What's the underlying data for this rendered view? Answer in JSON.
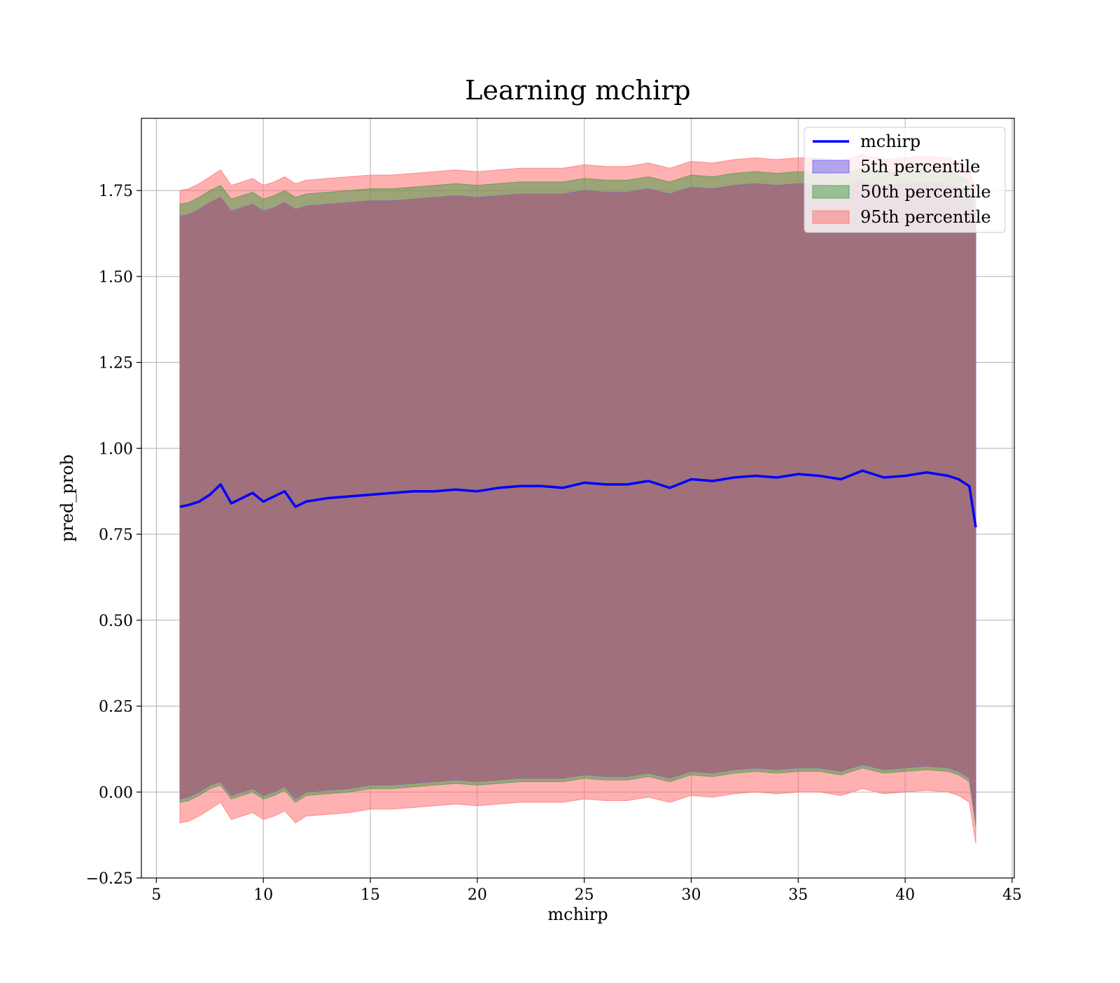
{
  "chart_data": {
    "type": "area",
    "title": "Learning mchirp",
    "xlabel": "mchirp",
    "ylabel": "pred_prob",
    "xlim": [
      4.3,
      45.1
    ],
    "ylim": [
      -0.25,
      1.96
    ],
    "xticks": [
      5,
      10,
      15,
      20,
      25,
      30,
      35,
      40,
      45
    ],
    "yticks": [
      -0.25,
      0.0,
      0.25,
      0.5,
      0.75,
      1.0,
      1.25,
      1.5,
      1.75
    ],
    "xtick_labels": [
      "5",
      "10",
      "15",
      "20",
      "25",
      "30",
      "35",
      "40",
      "45"
    ],
    "ytick_labels": [
      "−0.25",
      "0.00",
      "0.25",
      "0.50",
      "0.75",
      "1.00",
      "1.25",
      "1.50",
      "1.75"
    ],
    "grid": true,
    "legend_position": "top-right",
    "x": [
      6.1,
      6.5,
      7.0,
      7.5,
      8.0,
      8.5,
      9.0,
      9.5,
      10.0,
      10.5,
      11.0,
      11.5,
      12.0,
      13.0,
      14.0,
      15.0,
      16.0,
      17.0,
      18.0,
      19.0,
      20.0,
      21.0,
      22.0,
      23.0,
      24.0,
      25.0,
      26.0,
      27.0,
      28.0,
      29.0,
      30.0,
      31.0,
      32.0,
      33.0,
      34.0,
      35.0,
      36.0,
      37.0,
      38.0,
      39.0,
      40.0,
      41.0,
      42.0,
      42.5,
      43.0,
      43.3
    ],
    "series": [
      {
        "name": "mchirp",
        "kind": "line",
        "color": "#0000ff",
        "values": [
          0.83,
          0.835,
          0.845,
          0.865,
          0.895,
          0.84,
          0.855,
          0.87,
          0.845,
          0.86,
          0.875,
          0.83,
          0.845,
          0.855,
          0.86,
          0.865,
          0.87,
          0.875,
          0.875,
          0.88,
          0.875,
          0.885,
          0.89,
          0.89,
          0.885,
          0.9,
          0.895,
          0.895,
          0.905,
          0.885,
          0.91,
          0.905,
          0.915,
          0.92,
          0.915,
          0.925,
          0.92,
          0.91,
          0.935,
          0.915,
          0.92,
          0.93,
          0.92,
          0.91,
          0.89,
          0.77
        ]
      },
      {
        "name": "5th percentile",
        "kind": "band",
        "color": "#6a5af0",
        "lower": [
          -0.02,
          -0.015,
          0.0,
          0.02,
          0.03,
          -0.01,
          0.0,
          0.01,
          -0.01,
          0.0,
          0.015,
          -0.02,
          0.0,
          0.005,
          0.01,
          0.02,
          0.02,
          0.025,
          0.03,
          0.035,
          0.03,
          0.035,
          0.04,
          0.04,
          0.04,
          0.05,
          0.045,
          0.045,
          0.055,
          0.04,
          0.06,
          0.055,
          0.065,
          0.07,
          0.065,
          0.07,
          0.07,
          0.06,
          0.08,
          0.065,
          0.07,
          0.075,
          0.07,
          0.06,
          0.04,
          -0.08
        ],
        "upper": [
          1.675,
          1.68,
          1.695,
          1.715,
          1.73,
          1.69,
          1.7,
          1.71,
          1.69,
          1.7,
          1.715,
          1.695,
          1.705,
          1.71,
          1.715,
          1.72,
          1.72,
          1.725,
          1.73,
          1.735,
          1.73,
          1.735,
          1.74,
          1.74,
          1.74,
          1.75,
          1.745,
          1.745,
          1.755,
          1.74,
          1.76,
          1.755,
          1.765,
          1.77,
          1.765,
          1.77,
          1.77,
          1.76,
          1.78,
          1.765,
          1.77,
          1.775,
          1.77,
          1.76,
          1.74,
          1.68
        ]
      },
      {
        "name": "50th percentile",
        "kind": "band",
        "color": "#4a9a4a",
        "lower": [
          -0.03,
          -0.025,
          -0.01,
          0.01,
          0.02,
          -0.02,
          -0.01,
          0.0,
          -0.02,
          -0.01,
          0.005,
          -0.03,
          -0.01,
          -0.005,
          0.0,
          0.01,
          0.01,
          0.015,
          0.02,
          0.025,
          0.02,
          0.025,
          0.03,
          0.03,
          0.03,
          0.04,
          0.035,
          0.035,
          0.045,
          0.03,
          0.05,
          0.045,
          0.055,
          0.06,
          0.055,
          0.06,
          0.06,
          0.05,
          0.07,
          0.055,
          0.06,
          0.065,
          0.06,
          0.05,
          0.03,
          -0.1
        ],
        "upper": [
          1.71,
          1.715,
          1.73,
          1.75,
          1.765,
          1.725,
          1.735,
          1.745,
          1.725,
          1.735,
          1.75,
          1.73,
          1.74,
          1.745,
          1.75,
          1.755,
          1.755,
          1.76,
          1.765,
          1.77,
          1.765,
          1.77,
          1.775,
          1.775,
          1.775,
          1.785,
          1.78,
          1.78,
          1.79,
          1.775,
          1.795,
          1.79,
          1.8,
          1.805,
          1.8,
          1.805,
          1.805,
          1.795,
          1.815,
          1.8,
          1.805,
          1.81,
          1.805,
          1.795,
          1.775,
          1.71
        ]
      },
      {
        "name": "95th percentile",
        "kind": "band",
        "color": "#ff7070",
        "lower": [
          -0.09,
          -0.085,
          -0.07,
          -0.05,
          -0.03,
          -0.08,
          -0.07,
          -0.06,
          -0.08,
          -0.07,
          -0.055,
          -0.09,
          -0.07,
          -0.065,
          -0.06,
          -0.05,
          -0.05,
          -0.045,
          -0.04,
          -0.035,
          -0.04,
          -0.035,
          -0.03,
          -0.03,
          -0.03,
          -0.02,
          -0.025,
          -0.025,
          -0.015,
          -0.03,
          -0.01,
          -0.015,
          -0.005,
          0.0,
          -0.005,
          0.0,
          0.0,
          -0.01,
          0.01,
          -0.005,
          0.0,
          0.005,
          0.0,
          -0.01,
          -0.03,
          -0.15
        ],
        "upper": [
          1.75,
          1.755,
          1.77,
          1.79,
          1.81,
          1.765,
          1.775,
          1.785,
          1.765,
          1.775,
          1.79,
          1.77,
          1.78,
          1.785,
          1.79,
          1.795,
          1.795,
          1.8,
          1.805,
          1.81,
          1.805,
          1.81,
          1.815,
          1.815,
          1.815,
          1.825,
          1.82,
          1.82,
          1.83,
          1.815,
          1.835,
          1.83,
          1.84,
          1.845,
          1.84,
          1.845,
          1.845,
          1.835,
          1.855,
          1.84,
          1.845,
          1.85,
          1.845,
          1.835,
          1.815,
          1.75
        ]
      }
    ]
  }
}
